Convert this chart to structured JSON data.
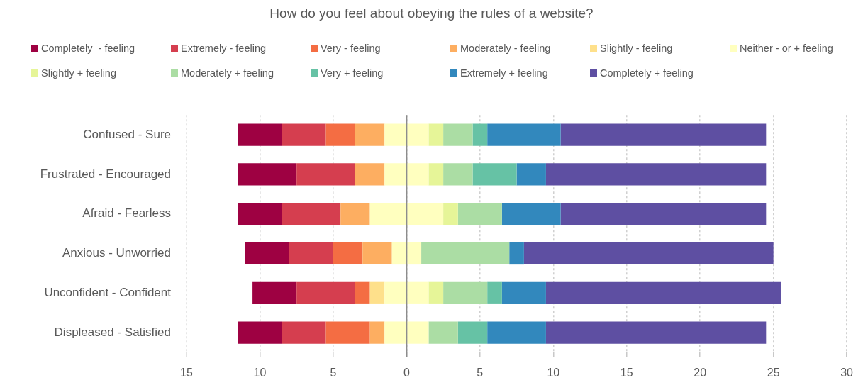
{
  "chart_data": {
    "type": "bar",
    "title": "How do you feel about obeying the rules of a website?",
    "categories": [
      "Confused - Sure",
      "Frustrated - Encouraged",
      "Afraid - Fearless",
      "Anxious - Unworried",
      "Unconfident - Confident",
      "Displeased - Satisfied"
    ],
    "orientation": "horizontal",
    "stacked": true,
    "series": [
      {
        "color": "#ffffbf",
        "values": [
          -1.5,
          -1.5,
          -2.5,
          -1,
          -1.5,
          -1.5
        ]
      },
      {
        "name": "Slightly - feeling",
        "color": "#fee08b",
        "values": [
          0,
          0,
          0,
          0,
          -1,
          0
        ]
      },
      {
        "name": "Moderately - feeling",
        "color": "#fdae61",
        "values": [
          -2,
          -2,
          -2,
          -2,
          0,
          -1
        ]
      },
      {
        "name": "Very - feeling",
        "color": "#f46d43",
        "values": [
          -2,
          0,
          0,
          -2,
          -1,
          -3
        ]
      },
      {
        "name": "Extremely - feeling",
        "color": "#d53e4f",
        "values": [
          -3,
          -4,
          -4,
          -3,
          -4,
          -3
        ]
      },
      {
        "name": "Completely  - feeling",
        "color": "#9e0142",
        "values": [
          -3,
          -4,
          -3,
          -3,
          -3,
          -3
        ]
      },
      {
        "name": "Neither - or + feeling",
        "color": "#ffffbf",
        "values": [
          1.5,
          1.5,
          2.5,
          1,
          1.5,
          1.5
        ]
      },
      {
        "name": "Slightly + feeling",
        "color": "#e6f598",
        "values": [
          1,
          1,
          1,
          0,
          1,
          0
        ]
      },
      {
        "name": "Moderately + feeling",
        "color": "#abdda4",
        "values": [
          2,
          2,
          3,
          6,
          3,
          2
        ]
      },
      {
        "name": "Very + feeling",
        "color": "#66c2a5",
        "values": [
          1,
          3,
          0,
          0,
          1,
          2
        ]
      },
      {
        "name": "Extremely + feeling",
        "color": "#3288bd",
        "values": [
          5,
          2,
          4,
          1,
          3,
          4
        ]
      },
      {
        "name": "Completely + feeling",
        "color": "#5e4fa2",
        "values": [
          14,
          15,
          14,
          17,
          16,
          15
        ]
      }
    ],
    "xlim": [
      -15,
      30
    ],
    "xticks": [
      {
        "value": -15,
        "label": "15"
      },
      {
        "value": -10,
        "label": "10"
      },
      {
        "value": -5,
        "label": "5"
      },
      0,
      5,
      10,
      15,
      20,
      25,
      30
    ],
    "grid": "x",
    "legend": "top"
  }
}
